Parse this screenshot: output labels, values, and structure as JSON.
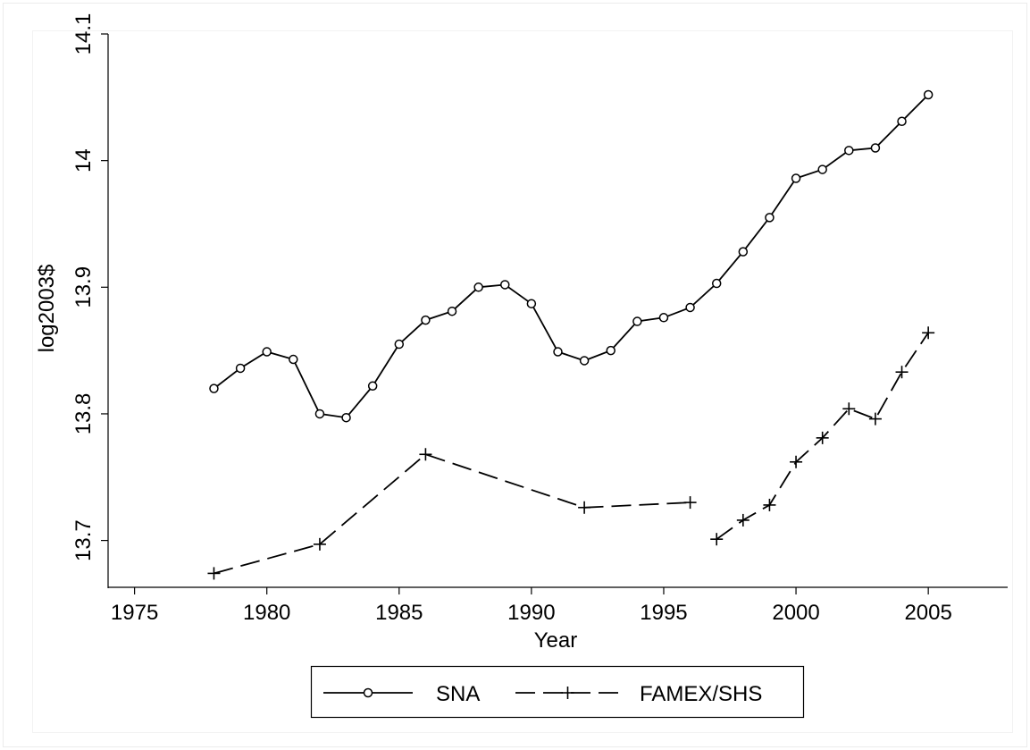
{
  "chart_data": {
    "type": "line",
    "xlabel": "Year",
    "ylabel": "log2003$",
    "xlim": [
      1974,
      2008
    ],
    "ylim": [
      13.663,
      14.1
    ],
    "x_ticks": [
      1975,
      1980,
      1985,
      1990,
      1995,
      2000,
      2005
    ],
    "y_ticks": [
      13.7,
      13.8,
      13.9,
      14,
      14.1
    ],
    "x_tick_labels": [
      "1975",
      "1980",
      "1985",
      "1990",
      "1995",
      "2000",
      "2005"
    ],
    "y_tick_labels": [
      "13.7",
      "13.8",
      "13.9",
      "14",
      "14.1"
    ],
    "grid": false,
    "legend_position": "bottom",
    "series": [
      {
        "name": "SNA",
        "marker": "circle",
        "line_style": "solid",
        "segments": [
          [
            [
              1978,
              13.82
            ],
            [
              1979,
              13.836
            ],
            [
              1980,
              13.849
            ],
            [
              1981,
              13.843
            ],
            [
              1982,
              13.8
            ],
            [
              1983,
              13.797
            ],
            [
              1984,
              13.822
            ],
            [
              1985,
              13.855
            ],
            [
              1986,
              13.874
            ],
            [
              1987,
              13.881
            ],
            [
              1988,
              13.9
            ],
            [
              1989,
              13.902
            ],
            [
              1990,
              13.887
            ],
            [
              1991,
              13.849
            ],
            [
              1992,
              13.842
            ],
            [
              1993,
              13.85
            ],
            [
              1994,
              13.873
            ],
            [
              1995,
              13.876
            ],
            [
              1996,
              13.884
            ],
            [
              1997,
              13.903
            ],
            [
              1998,
              13.928
            ],
            [
              1999,
              13.955
            ],
            [
              2000,
              13.986
            ],
            [
              2001,
              13.993
            ],
            [
              2002,
              14.008
            ],
            [
              2003,
              14.01
            ],
            [
              2004,
              14.031
            ],
            [
              2005,
              14.052
            ]
          ]
        ]
      },
      {
        "name": "FAMEX/SHS",
        "marker": "plus",
        "line_style": "dashed",
        "segments": [
          [
            [
              1978,
              13.674
            ],
            [
              1982,
              13.697
            ],
            [
              1986,
              13.768
            ],
            [
              1992,
              13.726
            ],
            [
              1996,
              13.73
            ]
          ],
          [
            [
              1997,
              13.701
            ],
            [
              1998,
              13.716
            ],
            [
              1999,
              13.728
            ],
            [
              2000,
              13.762
            ],
            [
              2001,
              13.781
            ],
            [
              2002,
              13.804
            ],
            [
              2003,
              13.796
            ],
            [
              2004,
              13.833
            ],
            [
              2005,
              13.864
            ]
          ]
        ]
      }
    ]
  }
}
